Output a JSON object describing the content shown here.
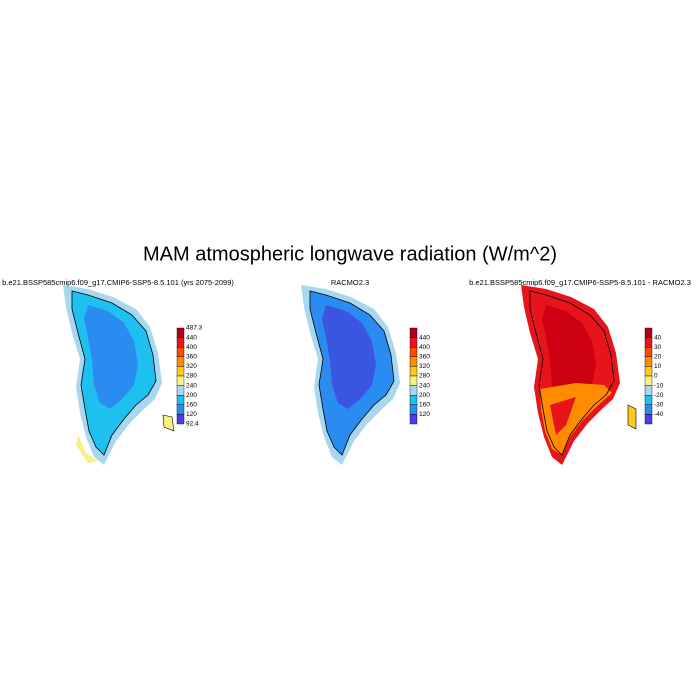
{
  "title": "MAM atmospheric longwave radiation (W/m^2)",
  "panels": [
    {
      "title": "b.e21.BSSP585cmip6.f09_g17.CMIP6-SSP5-8.5.101 (yrs 2075-2099)",
      "colorbar": {
        "labels": [
          "487.3",
          "440",
          "400",
          "360",
          "320",
          "280",
          "240",
          "200",
          "160",
          "120",
          "92.4"
        ],
        "colors": [
          "#b0001e",
          "#e8141c",
          "#ff4a00",
          "#ff8c00",
          "#ffc81e",
          "#f8f080",
          "#a8d8f0",
          "#1ec0f0",
          "#2a8cf0",
          "#4a3cf0"
        ]
      }
    },
    {
      "title": "RACMO2.3",
      "colorbar": {
        "labels": [
          "440",
          "400",
          "360",
          "320",
          "280",
          "240",
          "200",
          "160",
          "120"
        ],
        "colors": [
          "#b0001e",
          "#e8141c",
          "#ff4a00",
          "#ff8c00",
          "#ffc81e",
          "#f8f080",
          "#a8d8f0",
          "#1ec0f0",
          "#2a8cf0",
          "#4a3cf0"
        ]
      }
    },
    {
      "title": "b.e21.BSSP585cmip6.f09_g17.CMIP6-SSP5-8.5.101 - RACMO2.3",
      "colorbar": {
        "labels": [
          "40",
          "30",
          "20",
          "10",
          "0",
          "-10",
          "-20",
          "-30",
          "-40"
        ],
        "colors": [
          "#b0001e",
          "#e8141c",
          "#ff4a00",
          "#ff8c00",
          "#ffc81e",
          "#f8f080",
          "#a8d8f0",
          "#1ec0f0",
          "#2a8cf0",
          "#4a3cf0"
        ]
      }
    }
  ]
}
